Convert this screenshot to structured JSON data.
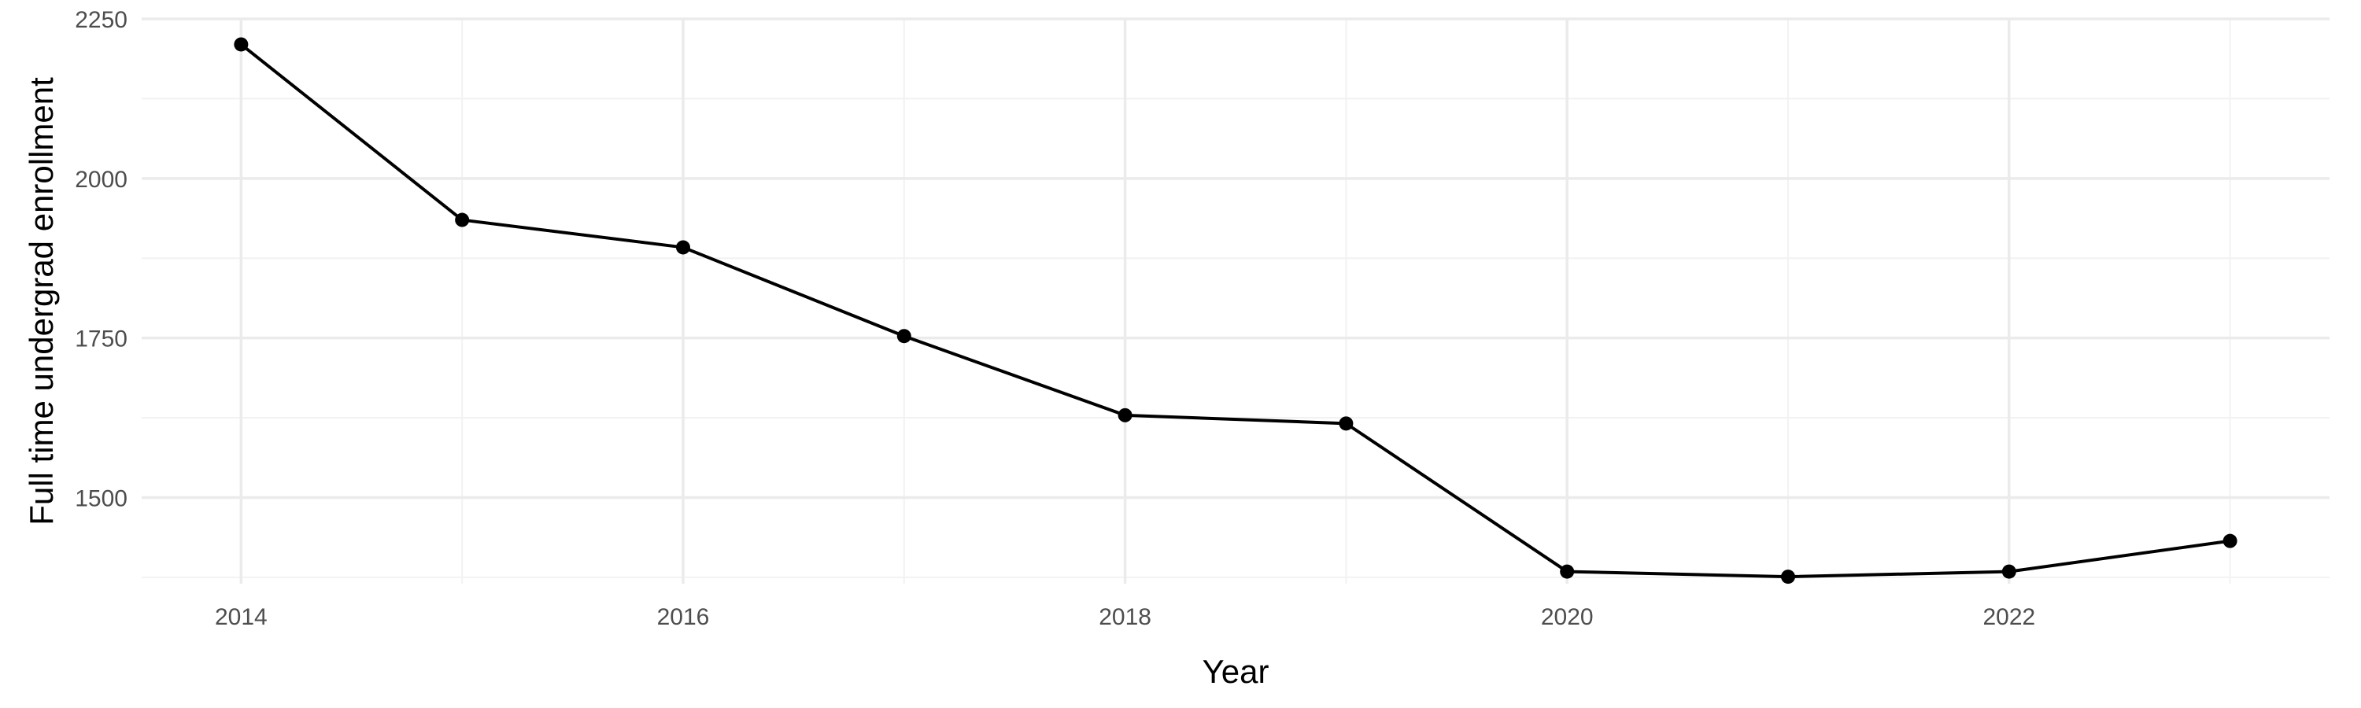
{
  "chart_data": {
    "type": "line",
    "title": "",
    "xlabel": "Year",
    "ylabel": "Full time undergrad enrollment",
    "x": [
      2014,
      2015,
      2016,
      2017,
      2018,
      2019,
      2020,
      2021,
      2022,
      2023
    ],
    "series": [
      {
        "values": [
          2210,
          1935,
          1892,
          1753,
          1629,
          1616,
          1384,
          1376,
          1384,
          1432
        ]
      }
    ],
    "xlim": [
      2013.55,
      2023.45
    ],
    "ylim": [
      1365,
      2250
    ],
    "x_ticks": [
      2014,
      2016,
      2018,
      2020,
      2022
    ],
    "y_ticks": [
      1500,
      1750,
      2000,
      2250
    ],
    "x_tick_labels": [
      "2014",
      "2016",
      "2018",
      "2020",
      "2022"
    ],
    "y_tick_labels": [
      "1500",
      "1750",
      "2000",
      "2250"
    ],
    "grid": true,
    "legend": "none",
    "line_color": "#000000",
    "grid_color": "#ebebeb"
  }
}
